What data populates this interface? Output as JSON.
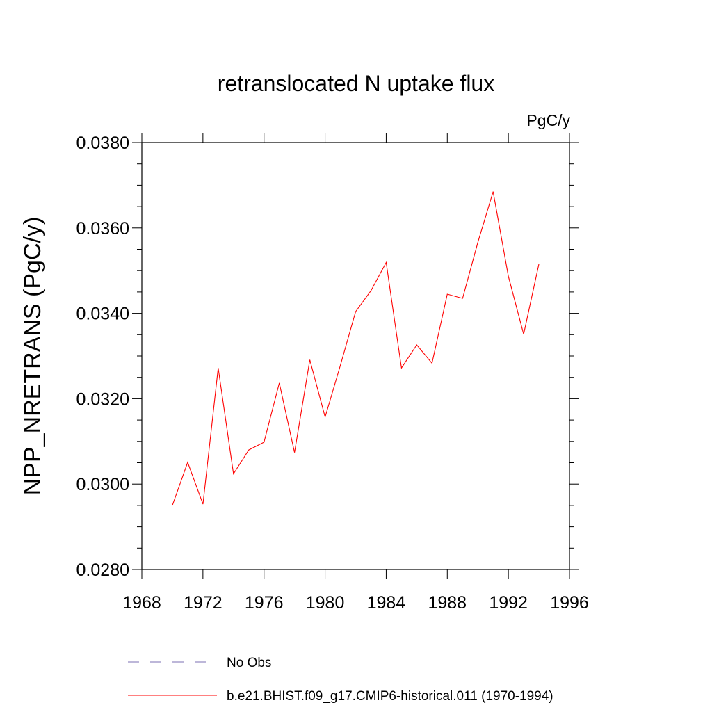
{
  "chart_data": {
    "type": "line",
    "title": "retranslocated N uptake flux",
    "units_label": "PgC/y",
    "ylabel": "NPP_NRETRANS  (PgC/y)",
    "xlabel": "",
    "xlim": [
      1968,
      1996
    ],
    "ylim": [
      0.028,
      0.038
    ],
    "x_ticks": [
      1968,
      1972,
      1976,
      1980,
      1984,
      1988,
      1992,
      1996
    ],
    "x_tick_labels": [
      "1968",
      "1972",
      "1976",
      "1980",
      "1984",
      "1988",
      "1992",
      "1996"
    ],
    "y_ticks": [
      0.028,
      0.03,
      0.032,
      0.034,
      0.036,
      0.038
    ],
    "y_tick_labels": [
      "0.0280",
      "0.0300",
      "0.0320",
      "0.0340",
      "0.0360",
      "0.0380"
    ],
    "grid": false,
    "legend_position": "bottom",
    "series": [
      {
        "name": "b.e21.BHIST.f09_g17.CMIP6-historical.011 (1970-1994)",
        "color": "#ff0000",
        "style": "solid",
        "x": [
          1970,
          1971,
          1972,
          1973,
          1974,
          1975,
          1976,
          1977,
          1978,
          1979,
          1980,
          1981,
          1982,
          1983,
          1984,
          1985,
          1986,
          1987,
          1988,
          1989,
          1990,
          1991,
          1992,
          1993,
          1994
        ],
        "y": [
          0.0295,
          0.03051,
          0.02953,
          0.03272,
          0.03024,
          0.0308,
          0.03098,
          0.03237,
          0.03074,
          0.03291,
          0.03157,
          0.03278,
          0.03404,
          0.03453,
          0.03519,
          0.03272,
          0.03326,
          0.03283,
          0.03445,
          0.03435,
          0.03566,
          0.03685,
          0.03487,
          0.03351,
          0.03516
        ]
      }
    ],
    "legend": [
      {
        "label": "No Obs",
        "color": "#7b6fb3",
        "style": "dashed"
      },
      {
        "label": "b.e21.BHIST.f09_g17.CMIP6-historical.011 (1970-1994)",
        "color": "#ff0000",
        "style": "solid"
      }
    ]
  }
}
